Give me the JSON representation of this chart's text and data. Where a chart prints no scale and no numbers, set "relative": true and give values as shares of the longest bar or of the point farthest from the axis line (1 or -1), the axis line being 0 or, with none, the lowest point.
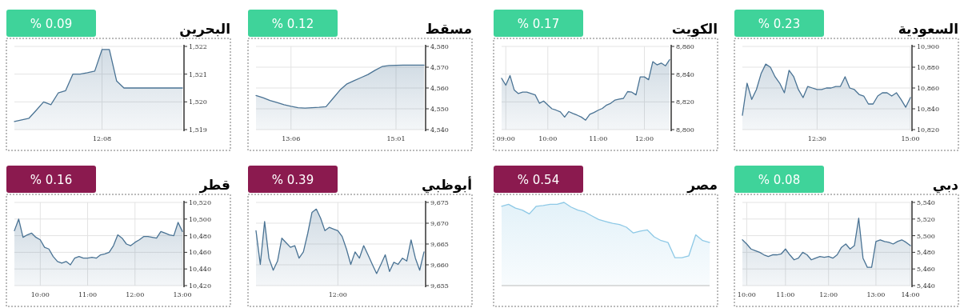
{
  "chart_data": [
    {
      "type": "area",
      "title": "السعودية",
      "subtitle": "% 0.23",
      "color": "#3fd39a",
      "grid": true,
      "ylim": [
        10820,
        10900
      ],
      "yticks": [
        {
          "value": 10820,
          "label": "10,820"
        },
        {
          "value": 10840,
          "label": "10,840"
        },
        {
          "value": 10860,
          "label": "10,860"
        },
        {
          "value": 10880,
          "label": "10,880"
        },
        {
          "value": 10900,
          "label": "10,900"
        }
      ],
      "categories": [
        null,
        null,
        null,
        null,
        null,
        null,
        null,
        null,
        null,
        null,
        null,
        null,
        null,
        null,
        null,
        null,
        "12:30",
        null,
        null,
        null,
        null,
        null,
        null,
        null,
        null,
        null,
        null,
        null,
        null,
        null,
        null,
        null,
        null,
        null,
        null,
        null,
        "15:00"
      ],
      "series": [
        {
          "color": "#4a7394",
          "values": [
            10833.8,
            10864.6,
            10849,
            10858.5,
            10873.8,
            10883,
            10880,
            10870.8,
            10864.6,
            10855.4,
            10877,
            10870.8,
            10858.5,
            10850.8,
            10861.5,
            10860,
            10858.5,
            10858.5,
            10860,
            10860,
            10861.5,
            10861.5,
            10870.8,
            10860,
            10858.5,
            10853.8,
            10852.3,
            10844.6,
            10844.6,
            10852.3,
            10855.4,
            10855.4,
            10852.3,
            10855.4,
            10849,
            10841.5,
            10850.8
          ]
        }
      ]
    },
    {
      "type": "area",
      "title": "الكويت",
      "subtitle": "% 0.17",
      "color": "#3fd39a",
      "grid": true,
      "ylim": [
        8800,
        8860
      ],
      "yticks": [
        {
          "value": 8800,
          "label": "8,800"
        },
        {
          "value": 8820,
          "label": "8,820"
        },
        {
          "value": 8840,
          "label": "8,840"
        },
        {
          "value": 8860,
          "label": "8,860"
        }
      ],
      "categories": [
        null,
        "09:00",
        null,
        null,
        null,
        null,
        null,
        null,
        null,
        null,
        null,
        "10:00",
        null,
        null,
        null,
        null,
        null,
        null,
        null,
        null,
        null,
        null,
        null,
        "11:00",
        null,
        null,
        null,
        null,
        null,
        null,
        null,
        null,
        null,
        null,
        "12:00",
        null,
        null,
        null,
        null,
        null,
        null
      ],
      "series": [
        {
          "color": "#4a7394",
          "values": [
            8837,
            8832,
            8839,
            8828.6,
            8826,
            8827,
            8827,
            8826,
            8825,
            8819,
            8820.6,
            8817.7,
            8815,
            8814,
            8812.8,
            8809,
            8813,
            8811.6,
            8810.4,
            8809,
            8806.8,
            8811,
            8812.3,
            8814,
            8815.3,
            8817.7,
            8819,
            8821.3,
            8822,
            8822.5,
            8827.4,
            8827,
            8825,
            8838,
            8838,
            8836,
            8849,
            8846.7,
            8848,
            8846,
            8850.4
          ]
        }
      ]
    },
    {
      "type": "area",
      "title": "مسقط",
      "subtitle": "% 0.12",
      "color": "#3fd39a",
      "grid": true,
      "ylim": [
        4540,
        4580
      ],
      "yticks": [
        {
          "value": 4540,
          "label": "4,540"
        },
        {
          "value": 4550,
          "label": "4,550"
        },
        {
          "value": 4560,
          "label": "4,560"
        },
        {
          "value": 4570,
          "label": "4,570"
        },
        {
          "value": 4580,
          "label": "4,580"
        }
      ],
      "categories": [
        null,
        null,
        null,
        null,
        null,
        "13:06",
        null,
        null,
        null,
        null,
        null,
        null,
        null,
        null,
        null,
        null,
        null,
        null,
        null,
        null,
        "15:01",
        null,
        null,
        null,
        null
      ],
      "series": [
        {
          "color": "#4a7394",
          "values": [
            4556.4,
            4555.3,
            4554,
            4553,
            4552,
            4551.2,
            4550.5,
            4550.3,
            4550.5,
            4550.7,
            4551,
            4555,
            4559,
            4562,
            4563.5,
            4565,
            4566.5,
            4568.5,
            4570.3,
            4570.8,
            4570.9,
            4571,
            4571,
            4571,
            4571
          ]
        }
      ]
    },
    {
      "type": "area",
      "title": "البحرين",
      "subtitle": "% 0.09",
      "color": "#3fd39a",
      "grid": true,
      "ylim": [
        1519,
        1522
      ],
      "yticks": [
        {
          "value": 1519,
          "label": "1,519"
        },
        {
          "value": 1520,
          "label": "1,520"
        },
        {
          "value": 1521,
          "label": "1,521"
        },
        {
          "value": 1522,
          "label": "1,522"
        }
      ],
      "categories": [
        null,
        null,
        null,
        null,
        null,
        null,
        null,
        null,
        null,
        null,
        null,
        null,
        "12:08",
        null,
        null,
        null,
        null,
        null,
        null,
        null,
        null,
        null,
        null,
        null
      ],
      "series": [
        {
          "color": "#4a7394",
          "values": [
            1519.29,
            1519.35,
            1519.41,
            1519.7,
            1520.0,
            1519.9,
            1520.32,
            1520.4,
            1521.0,
            1521.0,
            1521.05,
            1521.11,
            1521.89,
            1521.89,
            1520.75,
            1520.5,
            1520.5,
            1520.5,
            1520.5,
            1520.5,
            1520.5,
            1520.5,
            1520.5,
            1520.5
          ]
        }
      ]
    },
    {
      "type": "area",
      "title": "دبي",
      "subtitle": "% 0.08",
      "color": "#3fd39a",
      "grid": true,
      "ylim": [
        5440,
        5540
      ],
      "yticks": [
        {
          "value": 5440,
          "label": "5,440"
        },
        {
          "value": 5460,
          "label": "5,460"
        },
        {
          "value": 5480,
          "label": "5,480"
        },
        {
          "value": 5500,
          "label": "5,500"
        },
        {
          "value": 5520,
          "label": "5,520"
        },
        {
          "value": 5540,
          "label": "5,540"
        }
      ],
      "categories": [
        null,
        "10:00",
        null,
        null,
        null,
        null,
        null,
        null,
        null,
        null,
        "11:00",
        null,
        null,
        null,
        null,
        null,
        null,
        null,
        null,
        null,
        "12:00",
        null,
        null,
        null,
        null,
        null,
        null,
        null,
        null,
        null,
        null,
        "13:00",
        null,
        null,
        null,
        null,
        null,
        null,
        null,
        "14:00"
      ],
      "series": [
        {
          "color": "#4a7394",
          "values": [
            5495,
            5490,
            5484,
            5482,
            5480,
            5477,
            5475,
            5477,
            5477,
            5478,
            5484,
            5477,
            5471,
            5473,
            5480,
            5477,
            5471,
            5473,
            5475,
            5474,
            5475,
            5473,
            5477,
            5486,
            5490,
            5484,
            5488,
            5521,
            5473,
            5462,
            5462,
            5493,
            5495,
            5493,
            5492,
            5490,
            5493,
            5495,
            5492,
            5488
          ]
        }
      ]
    },
    {
      "type": "area",
      "title": "مصر",
      "subtitle": "% 0.54",
      "color": "#8b1a4f",
      "relative": true,
      "categories": [
        null,
        null,
        null,
        null,
        null,
        null,
        null,
        null,
        null,
        null,
        null,
        null,
        null,
        null,
        null,
        null,
        null,
        null,
        null,
        null,
        null,
        null,
        null,
        null,
        null,
        null,
        null,
        null,
        null,
        null,
        null
      ],
      "series": [
        {
          "color": "#8ec9e6",
          "values": [
            0.954,
            0.977,
            0.931,
            0.908,
            0.862,
            0.954,
            0.963,
            0.977,
            0.977,
            1,
            0.945,
            0.908,
            0.885,
            0.839,
            0.794,
            0.771,
            0.748,
            0.734,
            0.702,
            0.633,
            0.656,
            0.67,
            0.587,
            0.541,
            0.518,
            0.335,
            0.335,
            0.358,
            0.61,
            0.541,
            0.518
          ]
        }
      ]
    },
    {
      "type": "area",
      "title": "أبوظبي",
      "subtitle": "% 0.39",
      "color": "#8b1a4f",
      "grid": true,
      "ylim": [
        9655,
        9675
      ],
      "yticks": [
        {
          "value": 9655,
          "label": "9,655"
        },
        {
          "value": 9660,
          "label": "9,660"
        },
        {
          "value": 9665,
          "label": "9,665"
        },
        {
          "value": 9670,
          "label": "9,670"
        },
        {
          "value": 9675,
          "label": "9,675"
        }
      ],
      "categories": [
        null,
        null,
        null,
        null,
        null,
        null,
        null,
        null,
        null,
        null,
        null,
        null,
        null,
        null,
        null,
        null,
        null,
        null,
        null,
        "12:00",
        null,
        null,
        null,
        null,
        null,
        null,
        null,
        null,
        null,
        null,
        null,
        null,
        null,
        null,
        null,
        null,
        null,
        null,
        null,
        null
      ],
      "series": [
        {
          "color": "#4a7394",
          "values": [
            9668.2,
            9660.1,
            9670.4,
            9661.6,
            9658.7,
            9660.9,
            9666.4,
            9665.3,
            9664.2,
            9664.6,
            9661.6,
            9663.1,
            9667.5,
            9672.6,
            9673.4,
            9671.2,
            9668.2,
            9669,
            9668.6,
            9668.2,
            9666.8,
            9663.8,
            9660.1,
            9663.1,
            9661.6,
            9664.6,
            9662.4,
            9660.1,
            9657.9,
            9660.1,
            9662.4,
            9658.4,
            9660.6,
            9660.1,
            9661.6,
            9660.9,
            9666,
            9661.6,
            9658.7,
            9663.1
          ]
        }
      ]
    },
    {
      "type": "area",
      "title": "قطر",
      "subtitle": "% 0.16",
      "color": "#8b1a4f",
      "grid": true,
      "ylim": [
        10420,
        10520
      ],
      "yticks": [
        {
          "value": 10420,
          "label": "10,420"
        },
        {
          "value": 10440,
          "label": "10,440"
        },
        {
          "value": 10460,
          "label": "10,460"
        },
        {
          "value": 10480,
          "label": "10,480"
        },
        {
          "value": 10500,
          "label": "10,500"
        },
        {
          "value": 10520,
          "label": "10,520"
        }
      ],
      "categories": [
        null,
        null,
        null,
        null,
        null,
        null,
        "10:00",
        null,
        null,
        null,
        null,
        null,
        null,
        null,
        null,
        null,
        null,
        "11:00",
        null,
        null,
        null,
        null,
        null,
        null,
        null,
        null,
        null,
        null,
        "12:00",
        null,
        null,
        null,
        null,
        null,
        null,
        null,
        null,
        null,
        null,
        "13:00"
      ],
      "series": [
        {
          "color": "#4a7394",
          "values": [
            10486,
            10500,
            10478,
            10481,
            10483,
            10478,
            10475,
            10466,
            10464,
            10455,
            10449,
            10447,
            10449,
            10445,
            10453,
            10455,
            10453,
            10453,
            10454,
            10453,
            10457,
            10458,
            10460,
            10468,
            10481,
            10477,
            10470,
            10468,
            10472,
            10475,
            10479,
            10479,
            10478,
            10477,
            10485,
            10483,
            10481,
            10480,
            10496,
            10485
          ]
        }
      ]
    }
  ]
}
